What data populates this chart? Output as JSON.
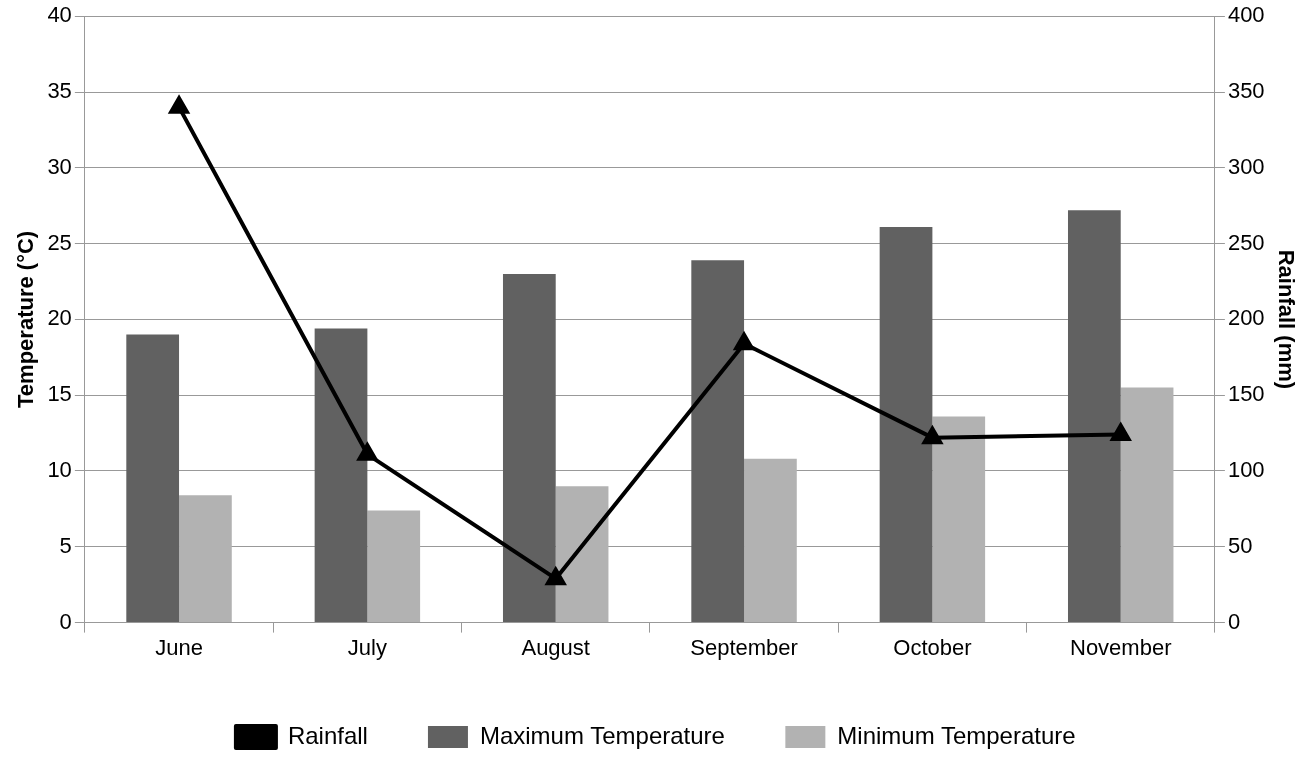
{
  "chart_data": {
    "type": "bar",
    "categories": [
      "June",
      "July",
      "August",
      "September",
      "October",
      "November"
    ],
    "ylabel": "Temperature (°C)",
    "y2label": "Rainfall (mm)",
    "series": [
      {
        "name": "Maximum Temperature",
        "color": "#616161",
        "values": [
          19.0,
          19.4,
          23.0,
          23.9,
          26.1,
          27.2
        ]
      },
      {
        "name": "Minimum Temperature",
        "color": "#b2b2b2",
        "values": [
          8.4,
          7.4,
          9.0,
          10.8,
          13.6,
          15.5
        ]
      },
      {
        "name": "Rainfall",
        "type": "line",
        "axis": "y2",
        "color": "#000000",
        "marker": "triangle",
        "values": [
          340,
          111,
          29,
          184,
          122,
          124
        ]
      }
    ],
    "ylim": [
      0,
      40
    ],
    "yticks": [
      0,
      5,
      10,
      15,
      20,
      25,
      30,
      35,
      40
    ],
    "y2lim": [
      0,
      400
    ],
    "y2ticks": [
      0,
      50,
      100,
      150,
      200,
      250,
      300,
      350,
      400
    ],
    "grid": "y",
    "legend": "bottom"
  }
}
